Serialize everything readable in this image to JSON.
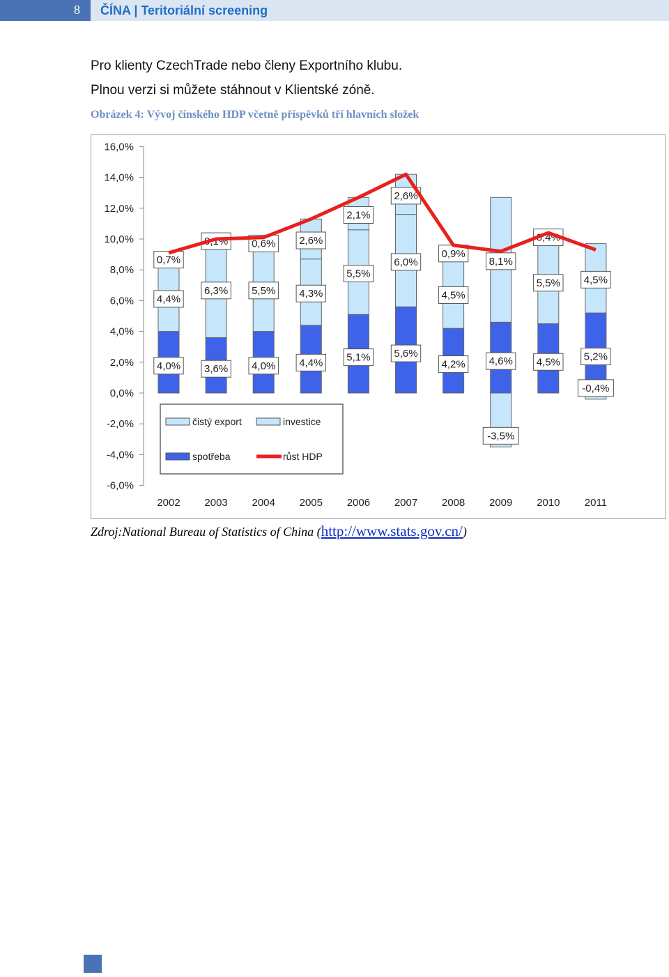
{
  "header": {
    "page_number": "8",
    "title": "ČÍNA | Teritoriální screening"
  },
  "intro": {
    "line1": "Pro klienty CzechTrade nebo členy Exportního klubu.",
    "line2": "Plnou verzi si můžete stáhnout v Klientské zóně."
  },
  "figure": {
    "caption": "Obrázek 4: Vývoj čínského HDP včetně příspěvků tří hlavních složek",
    "source_prefix": "Zdroj:National Bureau of Statistics of China (",
    "source_link": "http://www.stats.gov.cn/",
    "source_suffix": ")"
  },
  "chart_data": {
    "type": "bar",
    "stacked": true,
    "categories": [
      "2002",
      "2003",
      "2004",
      "2005",
      "2006",
      "2007",
      "2008",
      "2009",
      "2010",
      "2011"
    ],
    "ylim": [
      -6,
      16
    ],
    "yticks": [
      "-6,0%",
      "-4,0%",
      "-2,0%",
      "0,0%",
      "2,0%",
      "4,0%",
      "6,0%",
      "8,0%",
      "10,0%",
      "12,0%",
      "14,0%",
      "16,0%"
    ],
    "series": [
      {
        "name": "spotřeba",
        "color": "#3f63e8",
        "values": [
          4.0,
          3.6,
          4.0,
          4.4,
          5.1,
          5.6,
          4.2,
          4.6,
          4.5,
          5.2
        ],
        "labels": [
          "4,0%",
          "3,6%",
          "4,0%",
          "4,4%",
          "5,1%",
          "5,6%",
          "4,2%",
          "4,6%",
          "4,5%",
          "5,2%"
        ]
      },
      {
        "name": "investice",
        "color": "#c6e7fb",
        "values": [
          4.4,
          6.3,
          5.5,
          4.3,
          5.5,
          6.0,
          4.5,
          8.1,
          5.5,
          4.5
        ],
        "labels": [
          "4,4%",
          "6,3%",
          "5,5%",
          "4,3%",
          "5,5%",
          "6,0%",
          "4,5%",
          "8,1%",
          "5,5%",
          "4,5%"
        ]
      },
      {
        "name": "čistý export",
        "color": "#c6e7fb",
        "values": [
          0.7,
          0.1,
          0.6,
          2.6,
          2.1,
          2.6,
          0.9,
          -3.5,
          0.4,
          -0.4
        ],
        "labels": [
          "0,7%",
          "0,1%",
          "0,6%",
          "2,6%",
          "2,1%",
          "2,6%",
          "0,9%",
          "-3,5%",
          "0,4%",
          "-0,4%"
        ]
      },
      {
        "name": "růst HDP",
        "type": "line",
        "color": "#e8201e",
        "values": [
          9.1,
          10.0,
          10.1,
          11.3,
          12.7,
          14.2,
          9.6,
          9.2,
          10.4,
          9.3
        ]
      }
    ],
    "legend": "bottom-left inside plot",
    "grid": false
  }
}
